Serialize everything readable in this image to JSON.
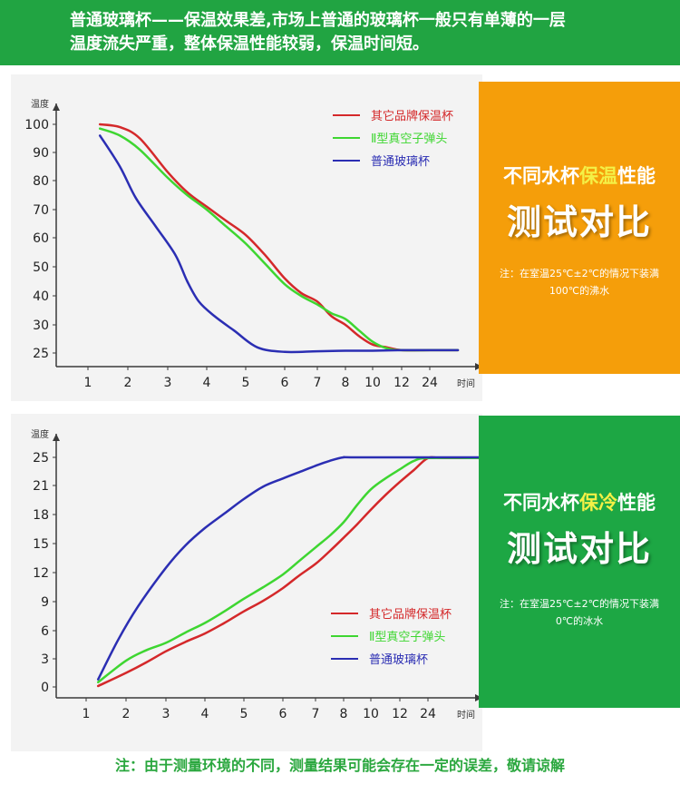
{
  "banner": {
    "line1": "普通玻璃杯——保温效果差,市场上普通的玻璃杯一般只有单薄的一层",
    "line2": "温度流失严重，整体保温性能较弱，保温时间短。"
  },
  "panels": {
    "hot": {
      "title_pre": "不同水杯",
      "title_hl": "保温",
      "title_post": "性能",
      "big": "测试对比",
      "note1": "注：在室温25℃±2℃的情况下装满",
      "note2": "100℃的沸水",
      "bg_color": "#f59e0a",
      "highlight_color": "#f4f046"
    },
    "cold": {
      "title_pre": "不同水杯",
      "title_hl": "保冷",
      "title_post": "性能",
      "big": "测试对比",
      "note1": "注：在室温25℃±2℃的情况下装满",
      "note2": "0℃的冰水",
      "bg_color": "#1da744",
      "highlight_color": "#f4f046"
    }
  },
  "footer": "注：由于测量环境的不同，测量结果可能会存在一定的误差，敬请谅解",
  "chart_data": [
    {
      "type": "line",
      "ylabel": "温度",
      "xlabel": "时间",
      "x": [
        "1",
        "2",
        "3",
        "4",
        "5",
        "6",
        "7",
        "8",
        "10",
        "12",
        "24"
      ],
      "yticks": [
        25,
        30,
        40,
        50,
        60,
        70,
        80,
        90,
        100
      ],
      "legend_position": "top-right",
      "grid": false,
      "series": [
        {
          "name": "其它品牌保温杯",
          "color": "#d4282a",
          "points": [
            [
              0.3,
              100
            ],
            [
              0.8,
              99
            ],
            [
              1.3,
              95
            ],
            [
              2,
              83
            ],
            [
              2.5,
              76
            ],
            [
              3,
              71
            ],
            [
              3.5,
              66
            ],
            [
              4,
              61
            ],
            [
              4.5,
              54
            ],
            [
              5,
              46
            ],
            [
              5.5,
              41
            ],
            [
              6,
              38
            ],
            [
              6.5,
              33
            ],
            [
              7,
              30
            ],
            [
              7.5,
              28
            ],
            [
              8,
              26.5
            ],
            [
              8.5,
              26
            ],
            [
              9,
              25.5
            ],
            [
              10,
              25.5
            ],
            [
              11,
              25.5
            ]
          ]
        },
        {
          "name": "Ⅱ型真空子弹头",
          "color": "#3ed631",
          "points": [
            [
              0.3,
              98.5
            ],
            [
              0.8,
              96
            ],
            [
              1.3,
              91
            ],
            [
              2,
              81
            ],
            [
              2.5,
              75
            ],
            [
              3,
              70
            ],
            [
              3.5,
              64
            ],
            [
              4,
              58
            ],
            [
              4.5,
              51
            ],
            [
              5,
              44
            ],
            [
              5.5,
              40
            ],
            [
              6,
              37
            ],
            [
              6.5,
              34
            ],
            [
              7,
              32
            ],
            [
              7.5,
              29
            ],
            [
              8,
              27
            ],
            [
              8.5,
              25.8
            ],
            [
              9,
              25.5
            ],
            [
              10,
              25.5
            ],
            [
              11,
              25.5
            ]
          ]
        },
        {
          "name": "普通玻璃杯",
          "color": "#2b2eb3",
          "points": [
            [
              0.3,
              96
            ],
            [
              0.8,
              85
            ],
            [
              1.2,
              74
            ],
            [
              1.7,
              64
            ],
            [
              2.2,
              54
            ],
            [
              2.5,
              45
            ],
            [
              2.8,
              38
            ],
            [
              3.2,
              33
            ],
            [
              3.7,
              29
            ],
            [
              4.3,
              26
            ],
            [
              5,
              25.2
            ],
            [
              6,
              25.3
            ],
            [
              7,
              25.4
            ],
            [
              8,
              25.4
            ],
            [
              9,
              25.5
            ],
            [
              10,
              25.5
            ],
            [
              11,
              25.5
            ]
          ]
        }
      ]
    },
    {
      "type": "line",
      "ylabel": "温度",
      "xlabel": "时间",
      "x": [
        "1",
        "2",
        "3",
        "4",
        "5",
        "6",
        "7",
        "8",
        "10",
        "12",
        "24"
      ],
      "yticks": [
        0,
        3,
        6,
        9,
        12,
        15,
        18,
        21,
        25
      ],
      "legend_position": "bottom-right",
      "grid": false,
      "series": [
        {
          "name": "其它品牌保温杯",
          "color": "#d4282a",
          "points": [
            [
              0.3,
              0.1
            ],
            [
              1,
              1.5
            ],
            [
              1.5,
              2.6
            ],
            [
              2,
              3.8
            ],
            [
              2.5,
              4.8
            ],
            [
              3,
              5.7
            ],
            [
              3.5,
              6.8
            ],
            [
              4,
              8
            ],
            [
              4.5,
              9.1
            ],
            [
              5,
              10.4
            ],
            [
              5.5,
              11.7
            ],
            [
              6,
              12.9
            ],
            [
              6.5,
              14.2
            ],
            [
              7,
              15.6
            ],
            [
              7.5,
              17
            ],
            [
              8,
              18.5
            ],
            [
              8.5,
              20
            ],
            [
              9,
              21.5
            ],
            [
              9.5,
              23.2
            ],
            [
              10,
              24.9
            ],
            [
              10.5,
              24.9
            ],
            [
              11.8,
              24.9
            ]
          ]
        },
        {
          "name": "Ⅱ型真空子弹头",
          "color": "#3ed631",
          "points": [
            [
              0.3,
              0.5
            ],
            [
              1,
              2.8
            ],
            [
              1.5,
              3.9
            ],
            [
              2,
              4.7
            ],
            [
              2.5,
              5.8
            ],
            [
              3,
              6.8
            ],
            [
              3.5,
              8
            ],
            [
              4,
              9.3
            ],
            [
              4.5,
              10.5
            ],
            [
              5,
              11.8
            ],
            [
              5.5,
              13.2
            ],
            [
              6,
              14.6
            ],
            [
              6.5,
              15.8
            ],
            [
              7,
              17.2
            ],
            [
              7.5,
              19
            ],
            [
              8,
              20.6
            ],
            [
              8.5,
              22
            ],
            [
              9,
              23.3
            ],
            [
              9.5,
              24.5
            ],
            [
              10,
              24.9
            ],
            [
              11.8,
              24.9
            ]
          ]
        },
        {
          "name": "普通玻璃杯",
          "color": "#2b2eb3",
          "points": [
            [
              0.3,
              0.8
            ],
            [
              0.8,
              5
            ],
            [
              1.3,
              8.5
            ],
            [
              2,
              12.5
            ],
            [
              2.5,
              14.8
            ],
            [
              3,
              16.6
            ],
            [
              3.5,
              18.1
            ],
            [
              4,
              19.6
            ],
            [
              4.5,
              20.9
            ],
            [
              5,
              22
            ],
            [
              5.5,
              22.9
            ],
            [
              6,
              23.8
            ],
            [
              6.5,
              24.5
            ],
            [
              7,
              25
            ],
            [
              7.5,
              25
            ],
            [
              11.8,
              25
            ]
          ]
        }
      ]
    }
  ]
}
